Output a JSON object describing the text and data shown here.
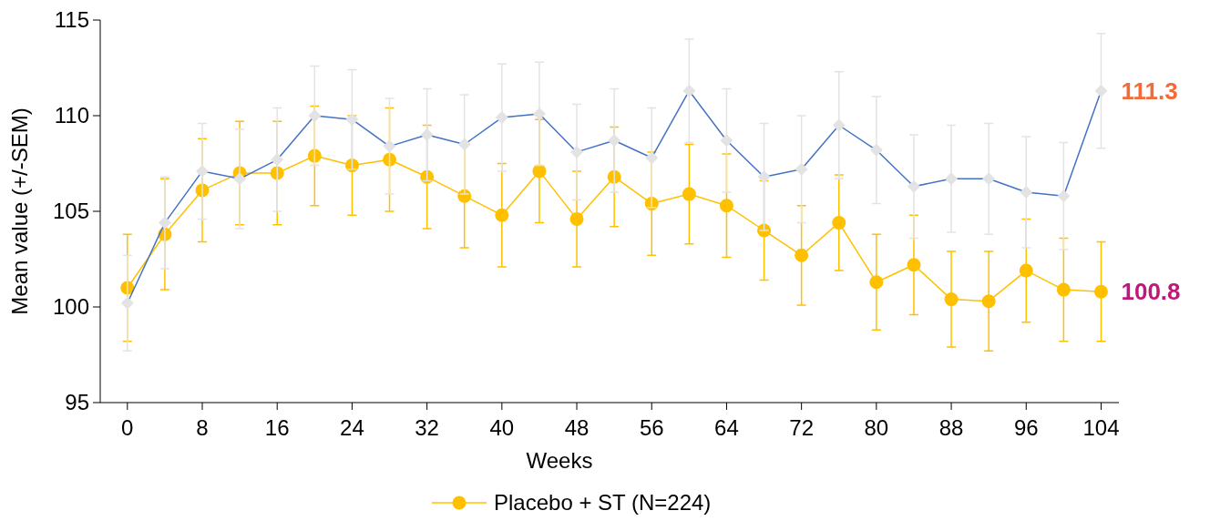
{
  "chart_data": {
    "type": "line",
    "xlabel": "Weeks",
    "ylabel": "Mean value (+/-SEM)",
    "x": [
      0,
      4,
      8,
      12,
      16,
      20,
      24,
      28,
      32,
      36,
      40,
      44,
      48,
      52,
      56,
      60,
      64,
      68,
      72,
      76,
      80,
      84,
      88,
      92,
      96,
      100,
      104
    ],
    "xlim": [
      -2.9,
      105.9
    ],
    "xticks": [
      0,
      8,
      16,
      24,
      32,
      40,
      48,
      56,
      64,
      72,
      80,
      88,
      96,
      104
    ],
    "ylim": [
      95,
      115
    ],
    "yticks": [
      95,
      100,
      105,
      110,
      115
    ],
    "series": [
      {
        "color": "#4472c4",
        "marker": "diamond",
        "values": [
          100.2,
          104.4,
          107.1,
          106.7,
          107.7,
          110.0,
          109.8,
          108.4,
          109.0,
          108.5,
          109.9,
          110.1,
          108.1,
          108.7,
          107.8,
          111.3,
          108.7,
          106.8,
          107.2,
          109.5,
          108.2,
          106.3,
          106.7,
          106.7,
          106.0,
          105.8,
          111.3
        ],
        "errors": [
          2.5,
          2.4,
          2.5,
          2.6,
          2.7,
          2.6,
          2.6,
          2.5,
          2.4,
          2.6,
          2.8,
          2.7,
          2.5,
          2.7,
          2.6,
          2.7,
          2.7,
          2.8,
          2.8,
          2.8,
          2.8,
          2.7,
          2.8,
          2.9,
          2.9,
          2.8,
          3.0
        ]
      },
      {
        "name": "Placebo + ST (N=224)",
        "color": "#ffc000",
        "marker": "circle",
        "values": [
          101.0,
          103.8,
          106.1,
          107.0,
          107.0,
          107.9,
          107.4,
          107.7,
          106.8,
          105.8,
          104.8,
          107.1,
          104.6,
          106.8,
          105.4,
          105.9,
          105.3,
          104.0,
          102.7,
          104.4,
          101.3,
          102.2,
          100.4,
          100.3,
          101.9,
          100.9,
          100.8
        ],
        "errors": [
          2.8,
          2.9,
          2.7,
          2.7,
          2.7,
          2.6,
          2.6,
          2.7,
          2.7,
          2.7,
          2.7,
          2.7,
          2.5,
          2.6,
          2.7,
          2.6,
          2.7,
          2.6,
          2.6,
          2.5,
          2.5,
          2.6,
          2.5,
          2.6,
          2.7,
          2.7,
          2.6
        ]
      }
    ],
    "annotations": [
      {
        "text": "111.3",
        "x": 104,
        "y": 111.3
      },
      {
        "text": "100.8",
        "x": 104,
        "y": 100.8
      }
    ],
    "legend": "bottom",
    "grid": false
  }
}
